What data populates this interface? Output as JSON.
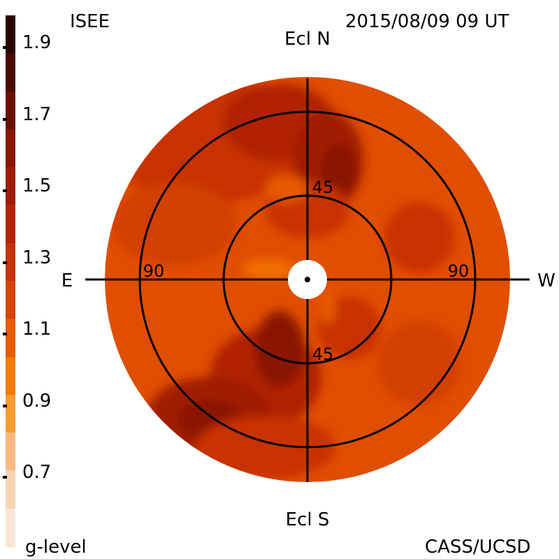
{
  "header": {
    "left_title": "ISEE",
    "right_title": "2015/08/09 09 UT"
  },
  "footer": {
    "left_label": "g-level",
    "right_label": "CASS/UCSD"
  },
  "colorbar": {
    "ticks": [
      "1.9",
      "1.7",
      "1.5",
      "1.3",
      "1.1",
      "0.9",
      "0.7"
    ],
    "colors": [
      "#2a0500",
      "#4a0a00",
      "#6a0f00",
      "#8a1500",
      "#a01c00",
      "#b52400",
      "#c83200",
      "#da4400",
      "#e85a00",
      "#f57a00",
      "#fb9a30",
      "#f8b880",
      "#f7d4b4",
      "#fbe6d6"
    ]
  },
  "map": {
    "directions": {
      "north": "Ecl N",
      "south": "Ecl S",
      "east": "E",
      "west": "W"
    },
    "ring_labels": {
      "inner_top": "45",
      "inner_bottom": "45",
      "outer_left": "90",
      "outer_right": "90"
    },
    "background_color": "#e04e00"
  }
}
